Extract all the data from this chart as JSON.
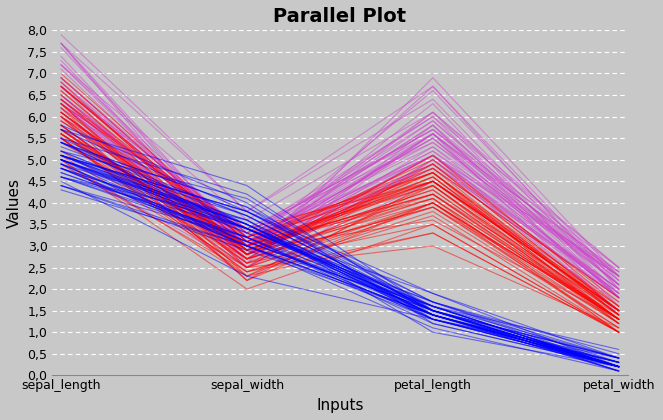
{
  "title": "Parallel Plot",
  "xlabel": "Inputs",
  "ylabel": "Values",
  "columns": [
    "sepal_length",
    "sepal_width",
    "petal_length",
    "petal_width"
  ],
  "ylim": [
    0.0,
    8.0
  ],
  "ytick_values": [
    0.0,
    0.5,
    1.0,
    1.5,
    2.0,
    2.5,
    3.0,
    3.5,
    4.0,
    4.5,
    5.0,
    5.5,
    6.0,
    6.5,
    7.0,
    7.5,
    8.0
  ],
  "ytick_labels": [
    "0,0",
    "0,5",
    "1,0",
    "1,5",
    "2,0",
    "2,5",
    "3,0",
    "3,5",
    "4,0",
    "4,5",
    "5,0",
    "5,5",
    "6,0",
    "6,5",
    "7,0",
    "7,5",
    "8,0"
  ],
  "background_color": "#c8c8c8",
  "grid_color": "#ffffff",
  "class_colors": {
    "setosa": "#0000ff",
    "versicolor": "#ff0000",
    "virginica": "#cc44cc"
  },
  "line_alpha": 0.5,
  "line_width": 0.8,
  "title_fontsize": 14,
  "title_fontweight": "bold",
  "axis_label_fontsize": 11,
  "tick_label_fontsize": 9
}
